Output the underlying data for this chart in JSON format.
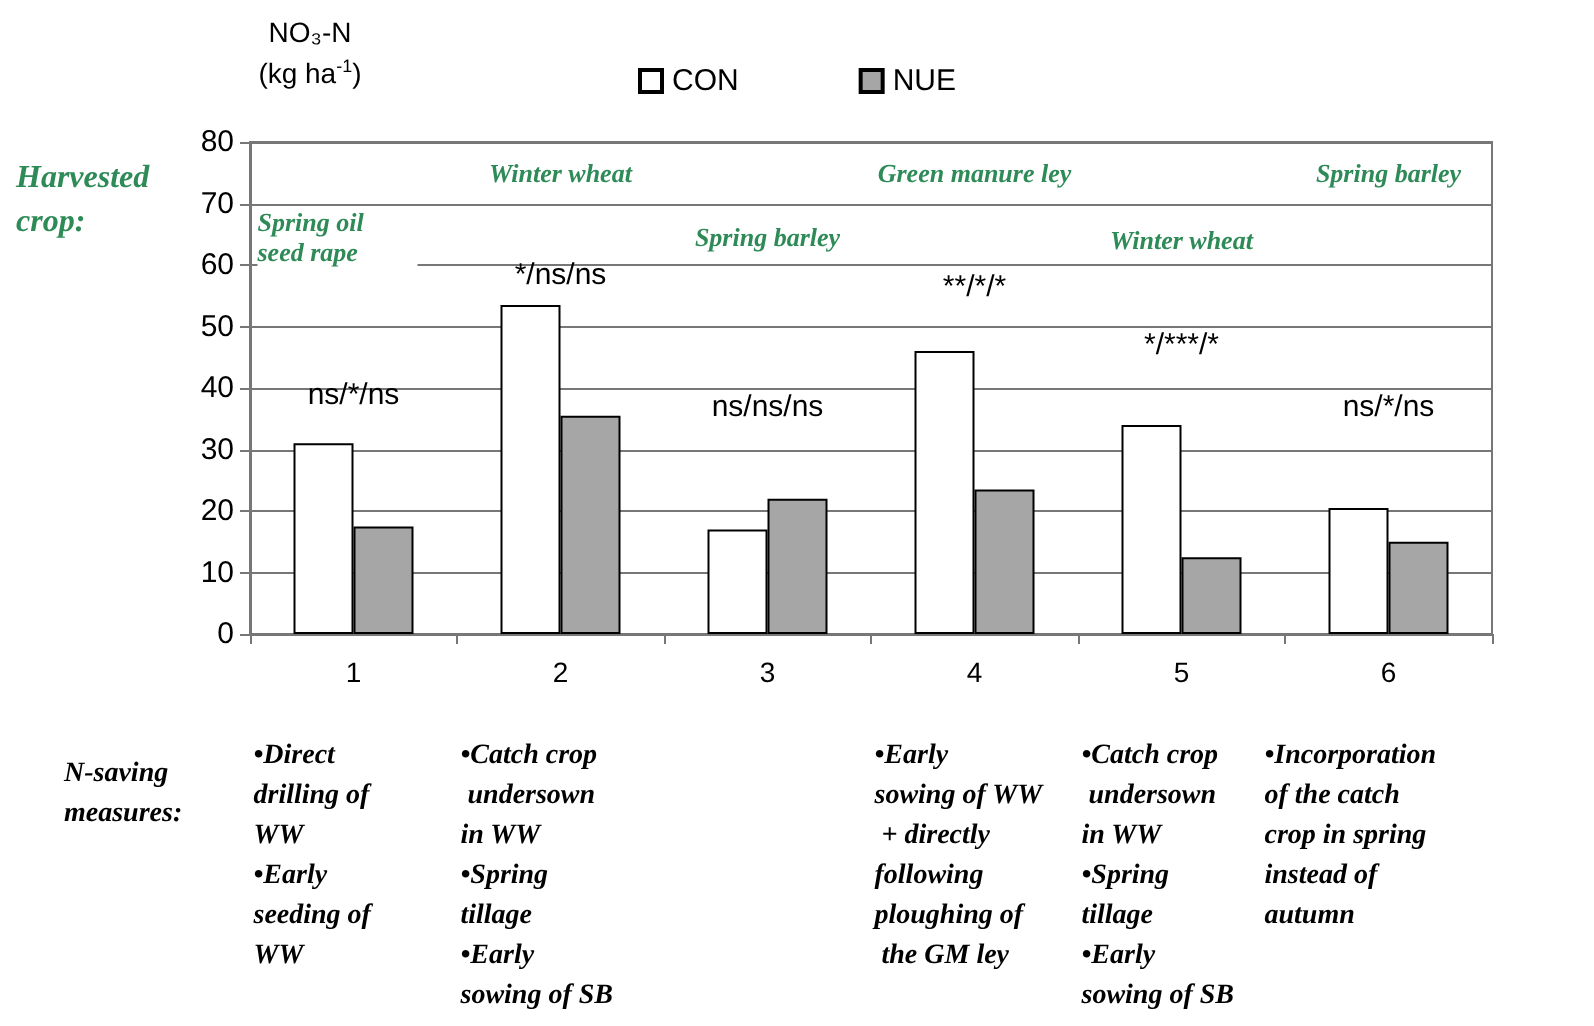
{
  "chart_data": {
    "type": "bar",
    "ylabel": "NO₃-N (kg ha$^{-1}$)",
    "categories": [
      "1",
      "2",
      "3",
      "4",
      "5",
      "6"
    ],
    "series": [
      {
        "name": "CON",
        "color": "#ffffff",
        "values": [
          31,
          53.5,
          17,
          46,
          34,
          20.5
        ]
      },
      {
        "name": "NUE",
        "color": "#a6a6a6",
        "values": [
          17.5,
          35.5,
          22,
          23.5,
          12.5,
          15
        ]
      }
    ],
    "ylim": [
      0,
      80
    ],
    "yticks": [
      0,
      10,
      20,
      30,
      40,
      50,
      60,
      70,
      80
    ],
    "grid": "y",
    "legend": "top",
    "annotations": [
      "Harvested crop:",
      "Spring oil seed rape",
      "Winter wheat",
      "Spring barley",
      "Green manure ley",
      "Winter wheat",
      "Spring barley",
      "N-saving measures:",
      "•Direct drilling of WW\n•Early seeding of WW",
      "•Catch crop undersown in WW\n•Spring tillage\n•Early sowing of SB",
      "•Early sowing of WW + directly following ploughing of the GM ley",
      "•Catch crop undersown in WW\n•Spring tillage\n•Early sowing of SB",
      "•Incorporation of the catch crop in spring instead of autumn",
      "ns/*/ns",
      "*/ns/ns",
      "ns/ns/ns",
      "**/*/*",
      "*/***/*",
      "ns/*/ns"
    ]
  }
}
